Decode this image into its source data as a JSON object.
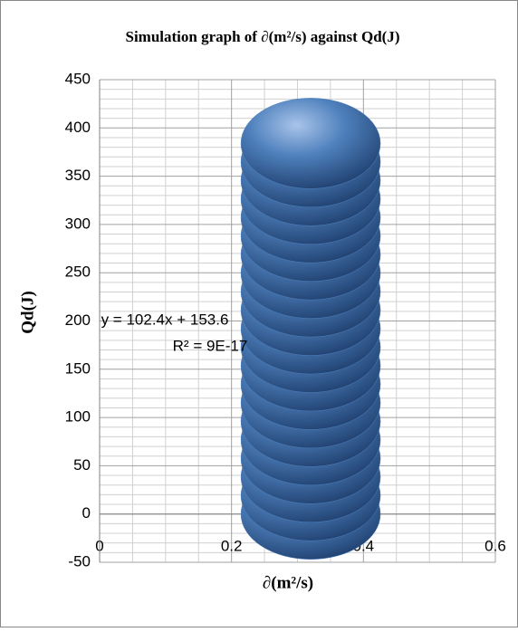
{
  "chart_data": {
    "type": "bubble",
    "title": "Simulation graph of ∂(m²/s) against Qd(J)",
    "x_label": "∂(m²/s)",
    "y_label": "Qd(J)",
    "annotations": [
      "y = 102.4x + 153.6",
      "R² = 9E-17"
    ],
    "x": [
      0.32,
      0.32,
      0.32,
      0.32,
      0.32,
      0.32,
      0.32,
      0.32,
      0.32,
      0.32,
      0.32,
      0.32,
      0.32,
      0.32,
      0.32,
      0.32,
      0.32,
      0.32,
      0.32,
      0.32,
      0.32
    ],
    "values": [
      0,
      19.2,
      38.4,
      57.6,
      76.8,
      96,
      115.2,
      134.4,
      153.6,
      172.8,
      192,
      211.2,
      230.4,
      249.6,
      268.8,
      288,
      307.2,
      326.4,
      345.6,
      364.8,
      384
    ],
    "color": "#4f81bd",
    "xlim": [
      0,
      0.6
    ],
    "xticks": [
      0,
      0.2,
      0.4,
      0.6
    ],
    "ylim": [
      -50,
      450
    ],
    "yticks": [
      -50,
      0,
      50,
      100,
      150,
      200,
      250,
      300,
      350,
      400,
      450
    ],
    "grid": true
  }
}
